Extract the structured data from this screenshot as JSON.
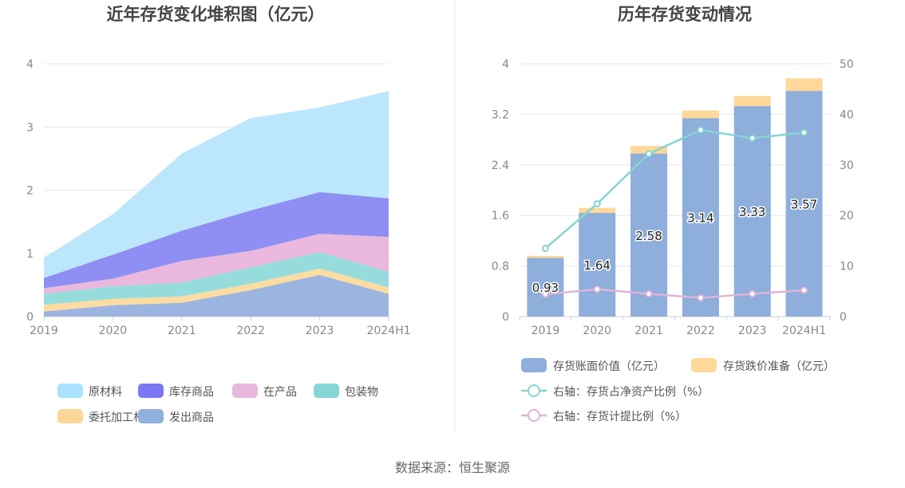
{
  "source_text": "数据来源：恒生聚源",
  "chart_data": [
    {
      "type": "area",
      "stacked": true,
      "title": "近年存货变化堆积图（亿元）",
      "categories": [
        "2019",
        "2020",
        "2021",
        "2022",
        "2023",
        "2024H1"
      ],
      "yticks": [
        "0",
        "1",
        "2",
        "3",
        "4"
      ],
      "ylim": [
        0,
        4
      ],
      "grid": true,
      "legend_position": "bottom",
      "series": [
        {
          "name": "发出商品",
          "color": "#9cb5e0",
          "values": [
            0.08,
            0.18,
            0.22,
            0.42,
            0.66,
            0.36
          ]
        },
        {
          "name": "委托加工材料",
          "color": "#fcdca0",
          "values": [
            0.11,
            0.1,
            0.1,
            0.1,
            0.1,
            0.1
          ]
        },
        {
          "name": "包装物",
          "color": "#96dcdd",
          "values": [
            0.17,
            0.2,
            0.22,
            0.26,
            0.26,
            0.25
          ]
        },
        {
          "name": "在产品",
          "color": "#eab8dc",
          "values": [
            0.09,
            0.12,
            0.34,
            0.26,
            0.29,
            0.55
          ]
        },
        {
          "name": "库存商品",
          "color": "#8f8ef2",
          "values": [
            0.16,
            0.38,
            0.48,
            0.64,
            0.66,
            0.61
          ]
        },
        {
          "name": "原材料",
          "color": "#bce6fb",
          "values": [
            0.32,
            0.64,
            1.22,
            1.46,
            1.34,
            1.7
          ]
        }
      ],
      "legend": [
        {
          "name": "原材料",
          "color": "#a8e2fc"
        },
        {
          "name": "库存商品",
          "color": "#7a78f2"
        },
        {
          "name": "在产品",
          "color": "#e8b8dc"
        },
        {
          "name": "包装物",
          "color": "#86d6d6"
        },
        {
          "name": "委托加工材料",
          "color": "#fcd898"
        },
        {
          "name": "发出商品",
          "color": "#8fb0dc"
        }
      ]
    },
    {
      "type": "bar",
      "title": "历年存货变动情况",
      "categories": [
        "2019",
        "2020",
        "2021",
        "2022",
        "2023",
        "2024H1"
      ],
      "yticks_left": [
        "0",
        "0.8",
        "1.6",
        "2.4",
        "3.2",
        "4"
      ],
      "yticks_right": [
        "0",
        "10",
        "20",
        "30",
        "40",
        "50"
      ],
      "ylim_left": [
        0,
        4
      ],
      "ylim_right": [
        0,
        50
      ],
      "grid": true,
      "legend_position": "bottom",
      "series": [
        {
          "name": "存货账面价值（亿元）",
          "color": "#8eaedb",
          "axis": "left",
          "stack": "inv",
          "values": [
            0.93,
            1.64,
            2.58,
            3.14,
            3.33,
            3.57
          ],
          "labels": [
            "0.93",
            "1.64",
            "2.58",
            "3.14",
            "3.33",
            "3.57"
          ]
        },
        {
          "name": "存货跌价准备（亿元）",
          "color": "#fdd898",
          "axis": "left",
          "stack": "inv",
          "values": [
            0.03,
            0.08,
            0.12,
            0.12,
            0.16,
            0.2
          ]
        },
        {
          "name": "右轴：存货占净资产比例（%）",
          "color": "#86d4d2",
          "axis": "right",
          "kind": "line",
          "values": [
            13.5,
            22.3,
            32.2,
            36.9,
            35.3,
            36.4
          ]
        },
        {
          "name": "右轴：存货计提比例（%）",
          "color": "#e0b4d8",
          "axis": "right",
          "kind": "line",
          "values": [
            4.4,
            5.4,
            4.5,
            3.7,
            4.5,
            5.2
          ]
        }
      ]
    }
  ]
}
